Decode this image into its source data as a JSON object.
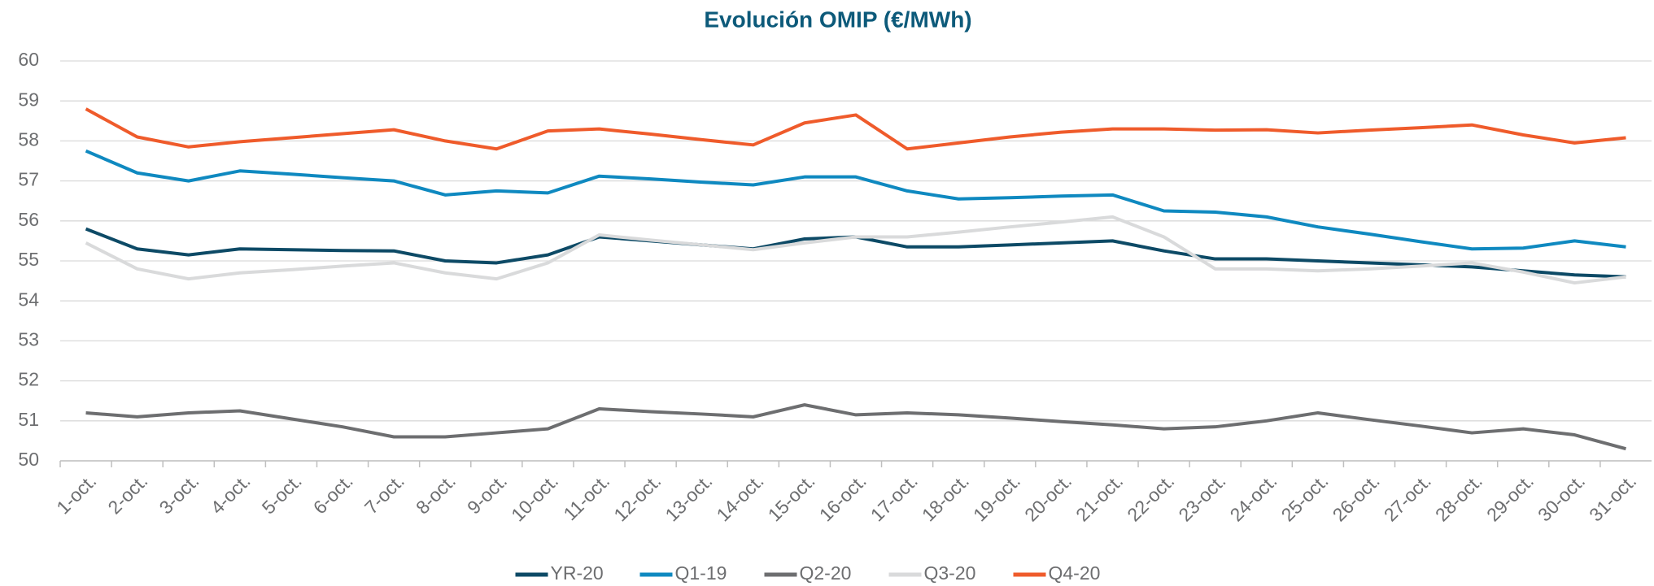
{
  "chart_data": {
    "type": "line",
    "title": "Evolución OMIP  (€/MWh)",
    "categories": [
      "1-oct.",
      "2-oct.",
      "3-oct.",
      "4-oct.",
      "5-oct.",
      "6-oct.",
      "7-oct.",
      "8-oct.",
      "9-oct.",
      "10-oct.",
      "11-oct.",
      "12-oct.",
      "13-oct.",
      "14-oct.",
      "15-oct.",
      "16-oct.",
      "17-oct.",
      "18-oct.",
      "19-oct.",
      "20-oct.",
      "21-oct.",
      "22-oct.",
      "23-oct.",
      "24-oct.",
      "25-oct.",
      "26-oct.",
      "27-oct.",
      "28-oct.",
      "29-oct.",
      "30-oct.",
      "31-oct."
    ],
    "series": [
      {
        "name": "YR-20",
        "color": "#0d4a66",
        "values": [
          55.8,
          55.3,
          55.15,
          55.3,
          55.28,
          55.26,
          55.25,
          55.0,
          54.95,
          55.15,
          55.6,
          55.5,
          55.4,
          55.3,
          55.55,
          55.6,
          55.35,
          55.35,
          55.4,
          55.45,
          55.5,
          55.25,
          55.05,
          55.05,
          55.0,
          54.95,
          54.9,
          54.85,
          54.75,
          54.65,
          54.6
        ]
      },
      {
        "name": "Q1-19",
        "color": "#0f89c0",
        "values": [
          57.75,
          57.2,
          57.0,
          57.25,
          57.17,
          57.08,
          57.0,
          56.65,
          56.75,
          56.7,
          57.12,
          57.05,
          56.97,
          56.9,
          57.1,
          57.1,
          56.75,
          56.55,
          56.58,
          56.62,
          56.65,
          56.25,
          56.22,
          56.1,
          55.85,
          55.67,
          55.48,
          55.3,
          55.32,
          55.5,
          55.35
        ]
      },
      {
        "name": "Q2-20",
        "color": "#6d6e70",
        "values": [
          51.2,
          51.1,
          51.2,
          51.25,
          51.05,
          50.85,
          50.6,
          50.6,
          50.7,
          50.8,
          51.3,
          51.23,
          51.17,
          51.1,
          51.4,
          51.15,
          51.2,
          51.15,
          51.07,
          50.98,
          50.9,
          50.8,
          50.85,
          51.0,
          51.2,
          51.03,
          50.87,
          50.7,
          50.8,
          50.65,
          50.3
        ]
      },
      {
        "name": "Q3-20",
        "color": "#d9dadb",
        "values": [
          55.45,
          54.8,
          54.55,
          54.7,
          54.78,
          54.87,
          54.95,
          54.7,
          54.55,
          54.95,
          55.65,
          55.52,
          55.4,
          55.28,
          55.45,
          55.6,
          55.6,
          55.72,
          55.85,
          55.97,
          56.1,
          55.6,
          54.8,
          54.8,
          54.75,
          54.8,
          54.87,
          54.95,
          54.72,
          54.45,
          54.6
        ]
      },
      {
        "name": "Q4-20",
        "color": "#ef5b2b",
        "values": [
          58.8,
          58.1,
          57.85,
          57.98,
          58.08,
          58.18,
          58.28,
          58.0,
          57.8,
          58.25,
          58.3,
          58.17,
          58.03,
          57.9,
          58.45,
          58.65,
          57.8,
          57.95,
          58.1,
          58.22,
          58.3,
          58.3,
          58.27,
          58.28,
          58.2,
          58.27,
          58.33,
          58.4,
          58.15,
          57.95,
          58.08
        ]
      }
    ],
    "ylim": [
      50,
      60
    ],
    "yticks": [
      50,
      51,
      52,
      53,
      54,
      55,
      56,
      57,
      58,
      59,
      60
    ],
    "grid": true,
    "legend": "bottom"
  }
}
